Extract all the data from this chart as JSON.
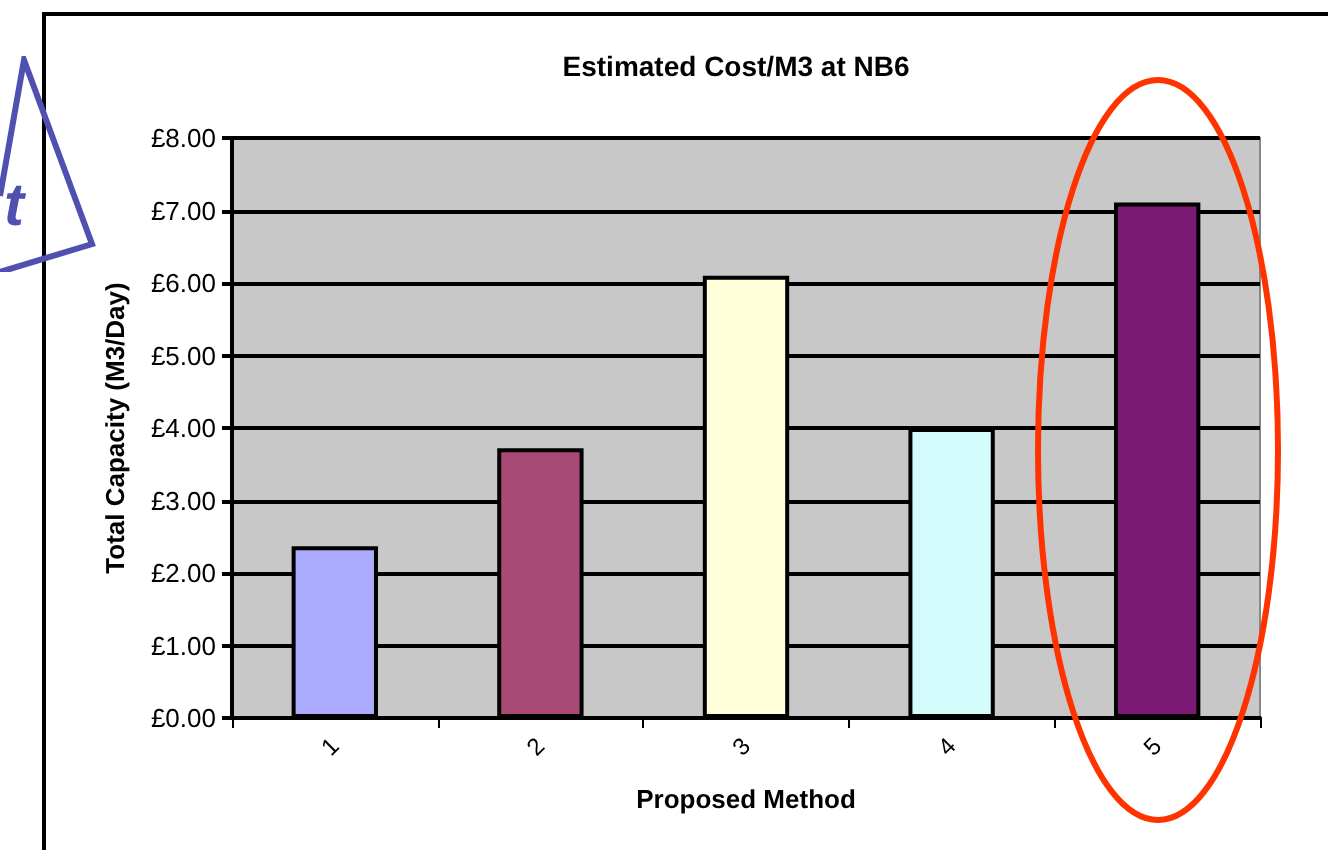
{
  "chart_data": {
    "type": "bar",
    "title": "Estimated Cost/M3 at NB6",
    "xlabel": "Proposed Method",
    "ylabel": "Total Capacity (M3/Day)",
    "categories": [
      "1",
      "2",
      "3",
      "4",
      "5"
    ],
    "values": [
      2.37,
      3.72,
      6.1,
      4.0,
      7.11
    ],
    "colors": [
      "#aaaaff",
      "#a94a76",
      "#ffffd9",
      "#d4fbfb",
      "#7b1a74"
    ],
    "ylim": [
      0,
      8
    ],
    "yticks": [
      {
        "value": 0,
        "label": "£0.00"
      },
      {
        "value": 1,
        "label": "£1.00"
      },
      {
        "value": 2,
        "label": "£2.00"
      },
      {
        "value": 3,
        "label": "£3.00"
      },
      {
        "value": 4,
        "label": "£4.00"
      },
      {
        "value": 5,
        "label": "£5.00"
      },
      {
        "value": 6,
        "label": "£6.00"
      },
      {
        "value": 7,
        "label": "£7.00"
      },
      {
        "value": 8,
        "label": "£8.00"
      }
    ],
    "grid": "y",
    "annotations": [
      "t"
    ]
  }
}
